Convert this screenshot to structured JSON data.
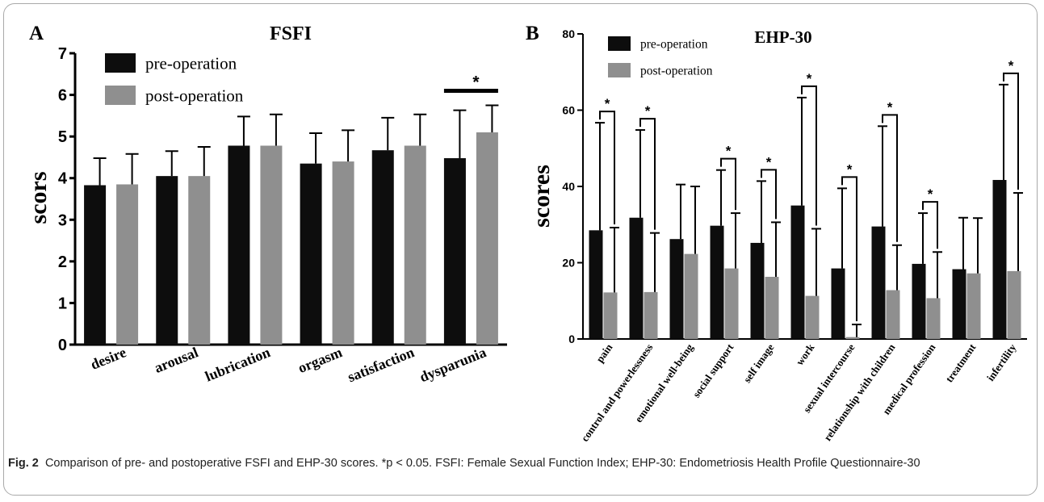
{
  "colors": {
    "pre": "#0d0d0d",
    "post": "#8f8f8f",
    "axis": "#000000"
  },
  "chart_data": [
    {
      "type": "bar",
      "panel_label": "A",
      "title": "FSFI",
      "ylabel": "scors",
      "ylim": [
        0,
        7
      ],
      "yticks": [
        0,
        1,
        2,
        3,
        4,
        5,
        6,
        7
      ],
      "categories": [
        "desire",
        "arousal",
        "lubrication",
        "orgasm",
        "satisfaction",
        "dysparunia"
      ],
      "series": [
        {
          "name": "pre-operation",
          "values": [
            3.83,
            4.05,
            4.78,
            4.35,
            4.67,
            4.48
          ],
          "errors": [
            0.65,
            0.6,
            0.7,
            0.73,
            0.78,
            1.15
          ]
        },
        {
          "name": "post-operation",
          "values": [
            3.85,
            4.05,
            4.78,
            4.4,
            4.78,
            5.1
          ],
          "errors": [
            0.73,
            0.7,
            0.75,
            0.75,
            0.75,
            0.65
          ]
        }
      ],
      "significance": [
        {
          "category_index": 5,
          "label": "*"
        }
      ],
      "legend": "top-left"
    },
    {
      "type": "bar",
      "panel_label": "B",
      "title": "EHP-30",
      "ylabel": "scores",
      "ylim": [
        0,
        80
      ],
      "yticks": [
        0,
        20,
        40,
        60,
        80
      ],
      "categories": [
        "pain",
        "control and powerlessness",
        "emotional well-being",
        "social support",
        "self image",
        "work",
        "sexual intercourse",
        "relationship with children",
        "medical profession",
        "treatment",
        "infertility"
      ],
      "series": [
        {
          "name": "pre-operation",
          "values": [
            28.5,
            31.8,
            26.2,
            29.7,
            25.2,
            35.0,
            18.5,
            29.5,
            19.7,
            18.3,
            41.7
          ],
          "errors": [
            28.2,
            23.0,
            14.3,
            14.6,
            16.2,
            28.3,
            21.0,
            26.3,
            13.3,
            13.5,
            25.0
          ]
        },
        {
          "name": "post-operation",
          "values": [
            12.2,
            12.3,
            22.3,
            18.5,
            16.3,
            11.3,
            0.5,
            12.8,
            10.7,
            17.2,
            17.8
          ],
          "errors": [
            17.0,
            15.5,
            17.7,
            14.5,
            14.3,
            17.6,
            3.3,
            11.8,
            12.1,
            14.5,
            20.5
          ]
        }
      ],
      "significance": [
        {
          "category_index": 0,
          "label": "*"
        },
        {
          "category_index": 1,
          "label": "*"
        },
        {
          "category_index": 3,
          "label": "*"
        },
        {
          "category_index": 4,
          "label": "*"
        },
        {
          "category_index": 5,
          "label": "*"
        },
        {
          "category_index": 6,
          "label": "*"
        },
        {
          "category_index": 7,
          "label": "*"
        },
        {
          "category_index": 8,
          "label": "*"
        },
        {
          "category_index": 10,
          "label": "*"
        }
      ],
      "legend": "top-left"
    }
  ],
  "caption": {
    "label": "Fig. 2",
    "text": "Comparison of pre- and postoperative FSFI and EHP-30 scores. *p < 0.05. FSFI: Female Sexual Function Index; EHP-30: Endometriosis Health Profile Questionnaire-30"
  }
}
